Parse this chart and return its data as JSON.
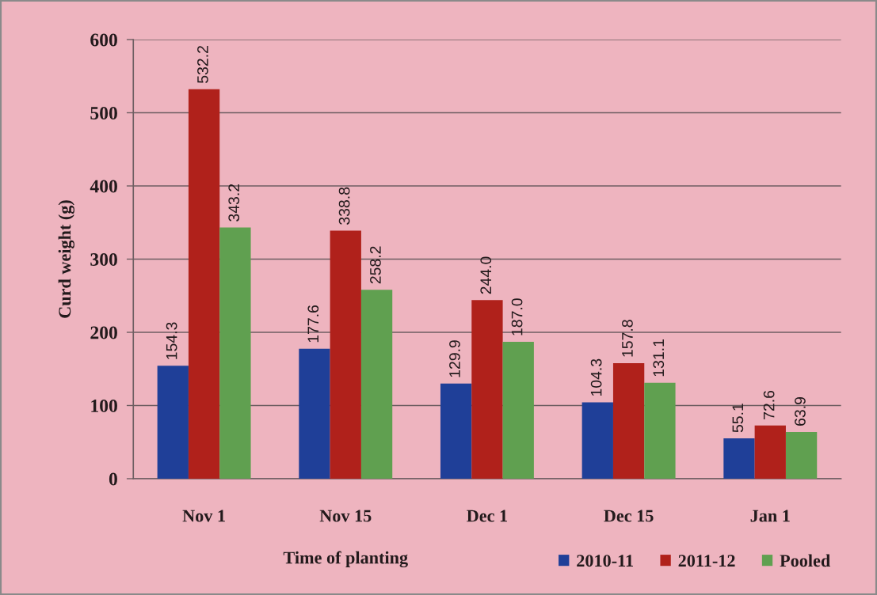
{
  "chart_data": {
    "type": "bar",
    "xlabel": "Time of planting",
    "ylabel": "Curd weight (g)",
    "categories": [
      "Nov 1",
      "Nov 15",
      "Dec 1",
      "Dec 15",
      "Jan 1"
    ],
    "series": [
      {
        "name": "2010-11",
        "color": "#1f3f98",
        "values": [
          154.3,
          177.6,
          129.9,
          104.3,
          55.1
        ],
        "value_labels": [
          "154.3",
          "177.6",
          "129.9",
          "104.3",
          "55.1"
        ]
      },
      {
        "name": "2011-12",
        "color": "#b0211b",
        "values": [
          532.2,
          338.8,
          244.0,
          157.8,
          72.6
        ],
        "value_labels": [
          "532.2",
          "338.8",
          "244.0",
          "157.8",
          "72.6"
        ]
      },
      {
        "name": "Pooled",
        "color": "#60a050",
        "values": [
          343.2,
          258.2,
          187.0,
          131.1,
          63.9
        ],
        "value_labels": [
          "343.2",
          "258.2",
          "187.0",
          "131.1",
          "63.9"
        ]
      }
    ],
    "ylim": [
      0,
      600
    ],
    "yticks": [
      0,
      100,
      200,
      300,
      400,
      500,
      600
    ],
    "grid": "y",
    "legend": "bottom right"
  }
}
